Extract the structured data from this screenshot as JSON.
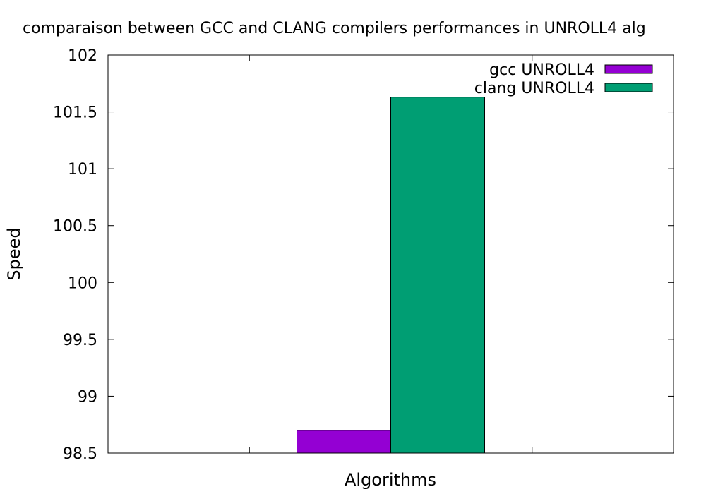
{
  "chart_data": {
    "type": "bar",
    "title": "comparaison between GCC and CLANG compilers performances in UNROLL4 alg",
    "xlabel": "Algorithms",
    "ylabel": "Speed",
    "ylim": [
      98.5,
      102
    ],
    "yticks": [
      "98.5",
      "99",
      "99.5",
      "100",
      "100.5",
      "101",
      "101.5",
      "102"
    ],
    "categories": [
      ""
    ],
    "series": [
      {
        "name": "gcc UNROLL4",
        "color": "#9400d3",
        "values": [
          98.7
        ]
      },
      {
        "name": "clang UNROLL4",
        "color": "#009e73",
        "values": [
          101.63
        ]
      }
    ],
    "legend_position": "top-right",
    "grid": false
  }
}
